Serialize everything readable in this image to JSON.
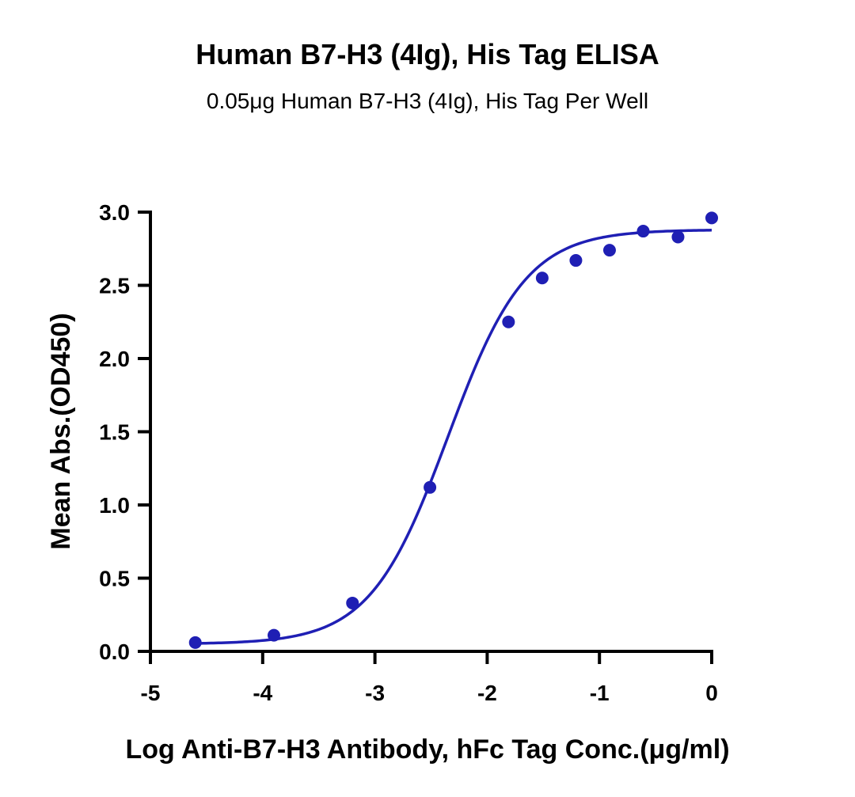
{
  "chart_data": {
    "type": "scatter",
    "title": "Human B7-H3 (4Ig), His Tag ELISA",
    "subtitle": "0.05μg Human B7-H3 (4Ig), His Tag Per Well",
    "xlabel": "Log Anti-B7-H3 Antibody, hFc Tag Conc.(μg/ml)",
    "ylabel": "Mean Abs.(OD450)",
    "xlim": [
      -5,
      0
    ],
    "ylim": [
      0,
      3.0
    ],
    "xticks": [
      -5,
      -4,
      -3,
      -2,
      -1,
      0
    ],
    "xtick_labels": [
      "-5",
      "-4",
      "-3",
      "-2",
      "-1",
      "0"
    ],
    "yticks": [
      0,
      0.5,
      1.0,
      1.5,
      2.0,
      2.5,
      3.0
    ],
    "ytick_labels": [
      "0.0",
      "0.5",
      "1.0",
      "1.5",
      "2.0",
      "2.5",
      "3.0"
    ],
    "grid": false,
    "color": "#1f1fb4",
    "series": [
      {
        "x": [
          -4.6,
          -3.9,
          -3.2,
          -2.51,
          -1.81,
          -1.51,
          -1.21,
          -0.91,
          -0.61,
          -0.3,
          0.0
        ],
        "y": [
          0.06,
          0.11,
          0.33,
          1.12,
          2.25,
          2.55,
          2.67,
          2.74,
          2.87,
          2.83,
          2.96
        ]
      }
    ],
    "fit": {
      "model": "4PL",
      "bottom": 0.05,
      "top": 2.88,
      "log_ec50": -2.35,
      "hill": 1.25
    }
  }
}
